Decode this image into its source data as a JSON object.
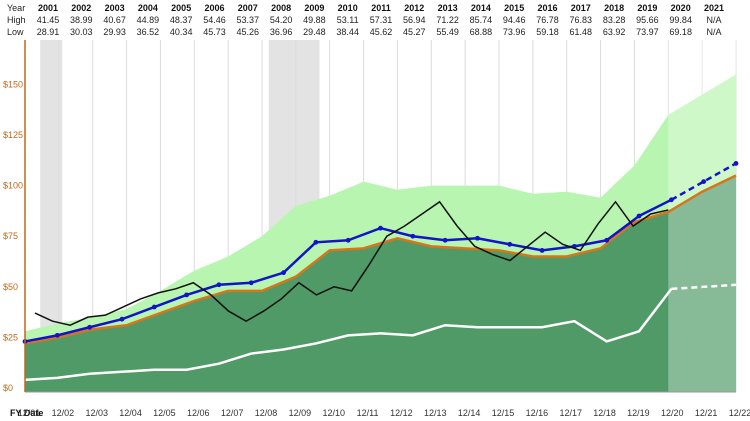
{
  "table": {
    "row_labels": [
      "Year",
      "High",
      "Low"
    ],
    "years": [
      "2001",
      "2002",
      "2003",
      "2004",
      "2005",
      "2006",
      "2007",
      "2008",
      "2009",
      "2010",
      "2011",
      "2012",
      "2013",
      "2014",
      "2015",
      "2016",
      "2017",
      "2018",
      "2019",
      "2020",
      "2021"
    ],
    "high": [
      "41.45",
      "38.99",
      "40.67",
      "44.89",
      "48.37",
      "54.46",
      "53.37",
      "54.20",
      "49.88",
      "53.11",
      "57.31",
      "56.94",
      "71.22",
      "85.74",
      "94.46",
      "76.78",
      "76.83",
      "83.28",
      "95.66",
      "99.84",
      "N/A"
    ],
    "low": [
      "28.91",
      "30.03",
      "29.93",
      "36.52",
      "40.34",
      "45.73",
      "45.26",
      "36.96",
      "29.48",
      "38.44",
      "45.62",
      "45.27",
      "55.49",
      "68.88",
      "73.96",
      "59.18",
      "61.48",
      "63.92",
      "73.97",
      "69.18",
      "N/A"
    ]
  },
  "chart_data": {
    "type": "area",
    "xlabel": "FY Date",
    "x_ticks": [
      "12/01",
      "12/02",
      "12/03",
      "12/04",
      "12/05",
      "12/06",
      "12/07",
      "12/08",
      "12/09",
      "12/10",
      "12/11",
      "12/12",
      "12/13",
      "12/14",
      "12/15",
      "12/16",
      "12/17",
      "12/18",
      "12/19",
      "12/20",
      "12/21",
      "12/22"
    ],
    "y_ticks": [
      "$0",
      "$25",
      "$50",
      "$75",
      "$100",
      "$125",
      "$150"
    ],
    "ylim": [
      -2,
      172
    ],
    "recession_bands": [
      [
        "2001.0",
        "2001.6"
      ],
      [
        "2007.5",
        "2009.0"
      ]
    ],
    "forecast_from": "12/20",
    "colors": {
      "band_outer": "#b8f5b0",
      "band_inner": "#4f9a66",
      "band_inner_forecast": "#9ac6ab",
      "fair_value_line": "#1313c8",
      "normal_pe_line": "#d4771c",
      "dividend_line": "#ffffff",
      "price_line": "#111111",
      "axis_tick": "#c0691a",
      "recession": "#e3e3e3"
    },
    "series": [
      {
        "key": "upper",
        "values": [
          28,
          32,
          35,
          39,
          48,
          58,
          65,
          75,
          90,
          95,
          102,
          98,
          100,
          100,
          100,
          96,
          97,
          94,
          110,
          135,
          145,
          155
        ]
      },
      {
        "key": "fair_value",
        "values": [
          22,
          25,
          29,
          31,
          37,
          43,
          48,
          48,
          55,
          68,
          69,
          74,
          70,
          69,
          68,
          65,
          65,
          69,
          82,
          87,
          97,
          105
        ]
      },
      {
        "key": "fair_value_top",
        "values": [
          23,
          26,
          30,
          34,
          40,
          46,
          51,
          52,
          57,
          72,
          73,
          79,
          75,
          73,
          74,
          71,
          68,
          70,
          73,
          85,
          93,
          102,
          111
        ]
      },
      {
        "key": "dividends",
        "values": [
          4,
          5,
          7,
          8,
          9,
          9,
          12,
          17,
          19,
          22,
          26,
          27,
          26,
          31,
          30,
          30,
          30,
          33,
          23,
          28,
          49,
          50,
          51
        ]
      },
      {
        "key": "price",
        "values": [
          37,
          33,
          31,
          35,
          36,
          40,
          44,
          47,
          49,
          52,
          46,
          38,
          33,
          38,
          44,
          52,
          46,
          50,
          48,
          61,
          75,
          80,
          86,
          92,
          80,
          70,
          66,
          63,
          70,
          77,
          71,
          68,
          81,
          92,
          80,
          86,
          88
        ]
      }
    ]
  }
}
